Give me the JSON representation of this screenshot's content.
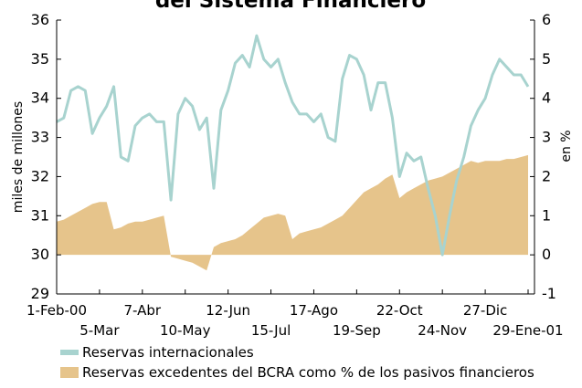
{
  "chart_data": {
    "type": "line",
    "title": "del Sistema Financiero",
    "y_label": "miles de millones",
    "y2_label": "en %",
    "categories": [
      "1-Feb-00",
      null,
      null,
      null,
      null,
      null,
      "5-Mar",
      null,
      null,
      null,
      null,
      null,
      "7-Abr",
      null,
      null,
      null,
      null,
      null,
      "10-May",
      null,
      null,
      null,
      null,
      null,
      "12-Jun",
      null,
      null,
      null,
      null,
      null,
      "15-Jul",
      null,
      null,
      null,
      null,
      null,
      "17-Ago",
      null,
      null,
      null,
      null,
      null,
      "19-Sep",
      null,
      null,
      null,
      null,
      null,
      "22-Oct",
      null,
      null,
      null,
      null,
      null,
      "24-Nov",
      null,
      null,
      null,
      null,
      null,
      "27-Dic",
      null,
      null,
      null,
      null,
      null,
      "29-Ene-01"
    ],
    "series": [
      {
        "name": "Reservas internacionales",
        "color": "#a8d3cf",
        "values": [
          33.4,
          33.5,
          34.2,
          34.3,
          34.2,
          33.1,
          33.5,
          33.8,
          34.3,
          32.5,
          32.4,
          33.3,
          33.5,
          33.6,
          33.4,
          33.4,
          31.4,
          33.6,
          34.0,
          33.8,
          33.2,
          33.5,
          31.7,
          33.7,
          34.2,
          34.9,
          35.1,
          34.8,
          35.6,
          35.0,
          34.8,
          35.0,
          34.4,
          33.9,
          33.6,
          33.6,
          33.4,
          33.6,
          33.0,
          32.9,
          34.5,
          35.1,
          35.0,
          34.6,
          33.7,
          34.4,
          34.4,
          33.5,
          32.0,
          32.6,
          32.4,
          32.5,
          31.7,
          31.0,
          30.0,
          31.0,
          31.9,
          32.5,
          33.3,
          33.7,
          34.0,
          34.6,
          35.0,
          34.8,
          34.6,
          34.6,
          34.3
        ]
      },
      {
        "name": "Reservas excedentes del BCRA como % de los pasivos financieros",
        "color": "#e6c48b",
        "axis": "y2",
        "type": "area",
        "values": [
          0.85,
          0.9,
          1.0,
          1.1,
          1.2,
          1.3,
          1.35,
          1.35,
          0.65,
          0.7,
          0.8,
          0.85,
          0.85,
          0.9,
          0.95,
          1.0,
          -0.05,
          -0.1,
          -0.15,
          -0.2,
          -0.3,
          -0.4,
          0.2,
          0.3,
          0.35,
          0.4,
          0.5,
          0.65,
          0.8,
          0.95,
          1.0,
          1.05,
          1.0,
          0.4,
          0.55,
          0.6,
          0.65,
          0.7,
          0.8,
          0.9,
          1.0,
          1.2,
          1.4,
          1.6,
          1.7,
          1.8,
          1.95,
          2.05,
          1.45,
          1.6,
          1.7,
          1.8,
          1.9,
          1.95,
          2.0,
          2.1,
          2.2,
          2.3,
          2.4,
          2.35,
          2.4,
          2.4,
          2.4,
          2.45,
          2.45,
          2.5,
          2.55
        ]
      }
    ],
    "ylim": [
      29,
      36
    ],
    "yticks": [
      29,
      30,
      31,
      32,
      33,
      34,
      35,
      36
    ],
    "y2lim": [
      -1,
      6
    ],
    "y2ticks": [
      -1,
      0,
      1,
      2,
      3,
      4,
      5,
      6
    ]
  }
}
